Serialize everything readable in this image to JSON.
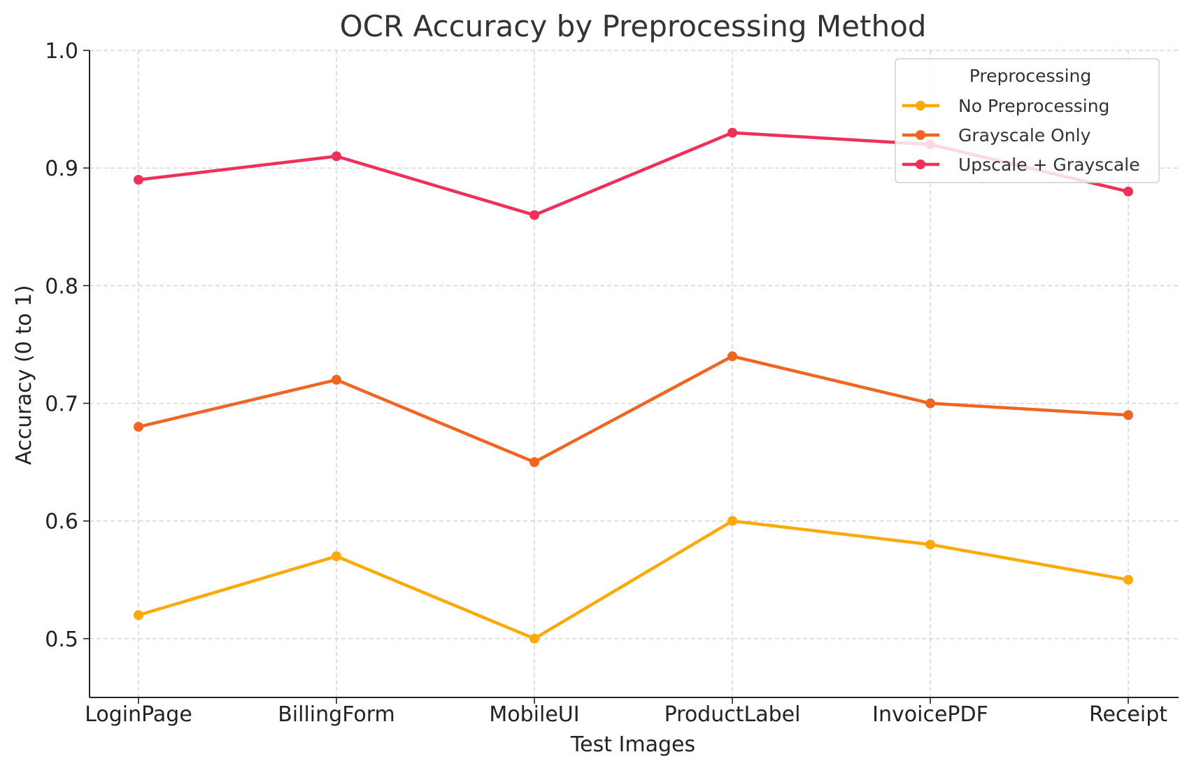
{
  "chart_data": {
    "type": "line",
    "title": "OCR Accuracy by Preprocessing Method",
    "xlabel": "Test Images",
    "ylabel": "Accuracy (0 to 1)",
    "categories": [
      "LoginPage",
      "BillingForm",
      "MobileUI",
      "ProductLabel",
      "InvoicePDF",
      "Receipt"
    ],
    "ylim": [
      0.45,
      1.0
    ],
    "yticks": [
      "0.5",
      "0.6",
      "0.7",
      "0.8",
      "0.9",
      "1.0"
    ],
    "grid": true,
    "legend": {
      "title": "Preprocessing",
      "placement": "top-right"
    },
    "series": [
      {
        "name": "No Preprocessing",
        "color": "#FBAA0A",
        "values": [
          0.52,
          0.57,
          0.5,
          0.6,
          0.58,
          0.55
        ]
      },
      {
        "name": "Grayscale Only",
        "color": "#F06522",
        "values": [
          0.68,
          0.72,
          0.65,
          0.74,
          0.7,
          0.69
        ]
      },
      {
        "name": "Upscale + Grayscale",
        "color": "#F0305A",
        "values": [
          0.89,
          0.91,
          0.86,
          0.93,
          0.92,
          0.88
        ]
      }
    ]
  }
}
